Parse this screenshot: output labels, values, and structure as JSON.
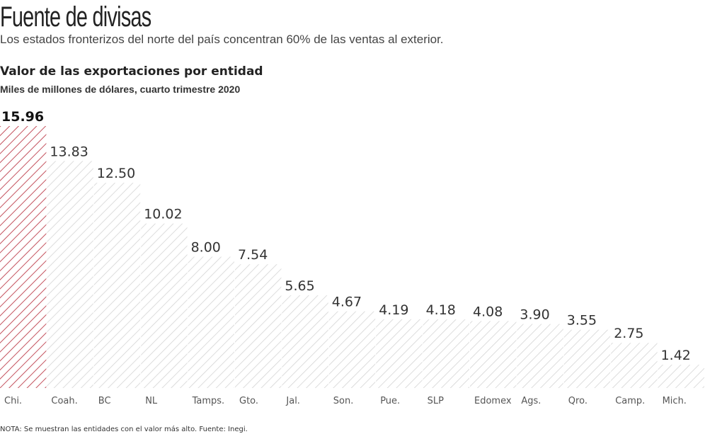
{
  "title": "Fuente de divisas",
  "subtitle": "Los estados fronterizos del norte del país concentran 60% de las ventas al exterior.",
  "note": "NOTA: Se muestran las entidades con el valor más alto. Fuente: Inegi.",
  "chart_data": {
    "type": "bar",
    "title": "Valor de las exportaciones por entidad",
    "subtitle": "Miles de millones de dólares, cuarto trimestre 2020",
    "categories": [
      "Chi.",
      "Coah.",
      "BC",
      "NL",
      "Tamps.",
      "Gto.",
      "Jal.",
      "Son.",
      "Pue.",
      "SLP",
      "Edomex",
      "Ags.",
      "Qro.",
      "Camp.",
      "Mich."
    ],
    "values": [
      15.96,
      13.83,
      12.5,
      10.02,
      8.0,
      7.54,
      5.65,
      4.67,
      4.19,
      4.18,
      4.08,
      3.9,
      3.55,
      2.75,
      1.42
    ],
    "value_labels": [
      "15.96",
      "13.83",
      "12.50",
      "10.02",
      "8.00",
      "7.54",
      "5.65",
      "4.67",
      "4.19",
      "4.18",
      "4.08",
      "3.90",
      "3.55",
      "2.75",
      "1.42"
    ],
    "ylim": [
      0,
      15.96
    ],
    "grid": false,
    "highlight_index": 0,
    "colors": {
      "highlight": "#c4525e",
      "default": "#d4d4d4"
    },
    "fill_style": "diagonal-hatch"
  }
}
